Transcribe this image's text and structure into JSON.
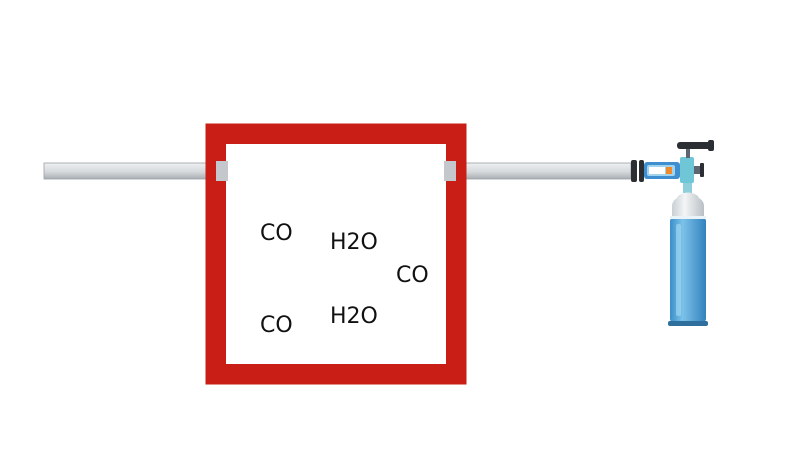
{
  "colors": {
    "chamber_wall": "#c81e16",
    "pipe": "#d4d8dc",
    "cylinder": "#5aa9dc",
    "valve": "#6ec6d6",
    "regulator": "#3f8fd0",
    "gauge": "#f08a2a"
  },
  "molecules": [
    {
      "label": "CO"
    },
    {
      "label": "H2O"
    },
    {
      "label": "CO"
    },
    {
      "label": "H2O"
    },
    {
      "label": "CO"
    }
  ],
  "icons": {
    "gas_cylinder": "gas-cylinder-icon",
    "valve": "valve-icon",
    "pressure_gauge": "pressure-gauge-icon"
  }
}
